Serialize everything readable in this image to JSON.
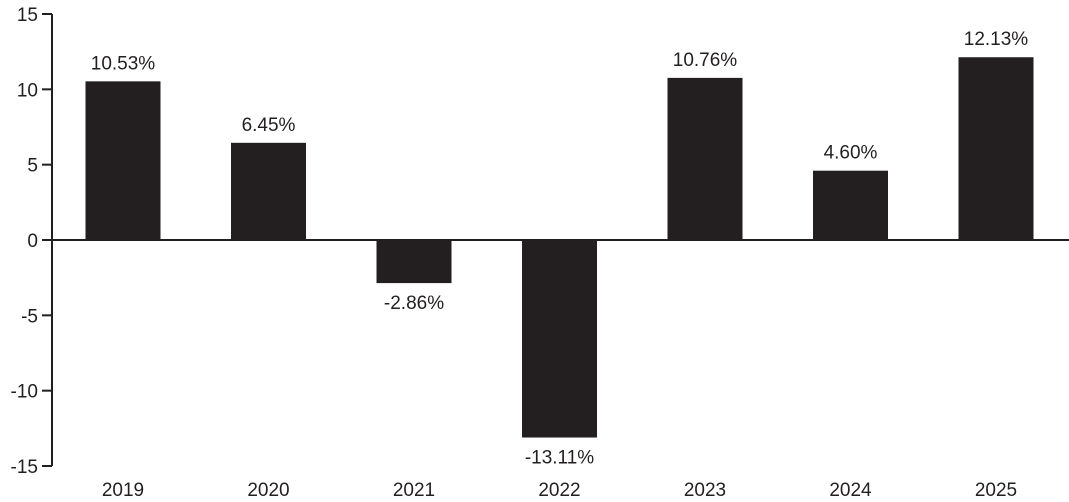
{
  "chart_data": {
    "type": "bar",
    "categories": [
      "2019",
      "2020",
      "2021",
      "2022",
      "2023",
      "2024",
      "2025"
    ],
    "values": [
      10.53,
      6.45,
      -2.86,
      -13.11,
      10.76,
      4.6,
      12.13
    ],
    "data_labels": [
      "10.53%",
      "6.45%",
      "-2.86%",
      "-13.11%",
      "10.76%",
      "4.60%",
      "12.13%"
    ],
    "yticks": [
      15,
      10,
      5,
      0,
      -5,
      -10,
      -15
    ],
    "ytick_labels": [
      "15",
      "10",
      "5",
      "0",
      "-5",
      "-10",
      "-15"
    ],
    "ylim": [
      -15,
      15
    ],
    "title": "",
    "xlabel": "",
    "ylabel": "",
    "grid": false,
    "bar_color": "#231f20",
    "axis_color": "#231f20"
  }
}
